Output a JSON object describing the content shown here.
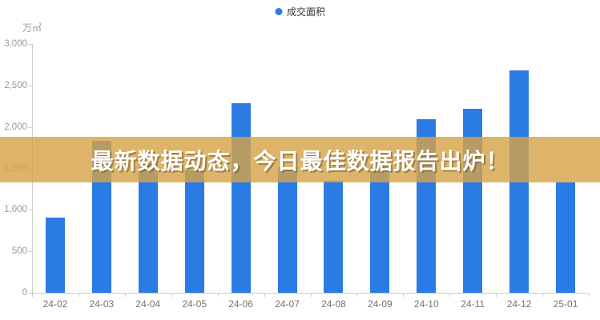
{
  "legend": {
    "label": "成交面积"
  },
  "banner": {
    "text": "最新数据动态，今日最佳数据报告出炉！"
  },
  "chart_data": {
    "type": "bar",
    "title": "",
    "unit_label": "万㎡",
    "categories": [
      "24-02",
      "24-03",
      "24-04",
      "24-05",
      "24-06",
      "24-07",
      "24-08",
      "24-09",
      "24-10",
      "24-11",
      "24-12",
      "25-01"
    ],
    "series": [
      {
        "name": "成交面积",
        "values": [
          910,
          1830,
          1550,
          1480,
          2290,
          1510,
          1350,
          1530,
          2090,
          2220,
          2680,
          1330
        ]
      }
    ],
    "xlabel": "",
    "ylabel": "万㎡",
    "ylim": [
      0,
      3000
    ],
    "ytick_step": 500,
    "ytick_labels": [
      "3,000",
      "2,500",
      "2,000",
      "1,500",
      "1,000",
      "500",
      "0"
    ],
    "grid": false,
    "legend_position": "top-center",
    "colors": {
      "bar": "#2b7be4",
      "banner_bg": "rgba(213,163,72,0.82)",
      "banner_text": "#ffffff",
      "axis": "#cccccc",
      "ytick_text": "#999999",
      "xtick_text": "#737373"
    }
  }
}
